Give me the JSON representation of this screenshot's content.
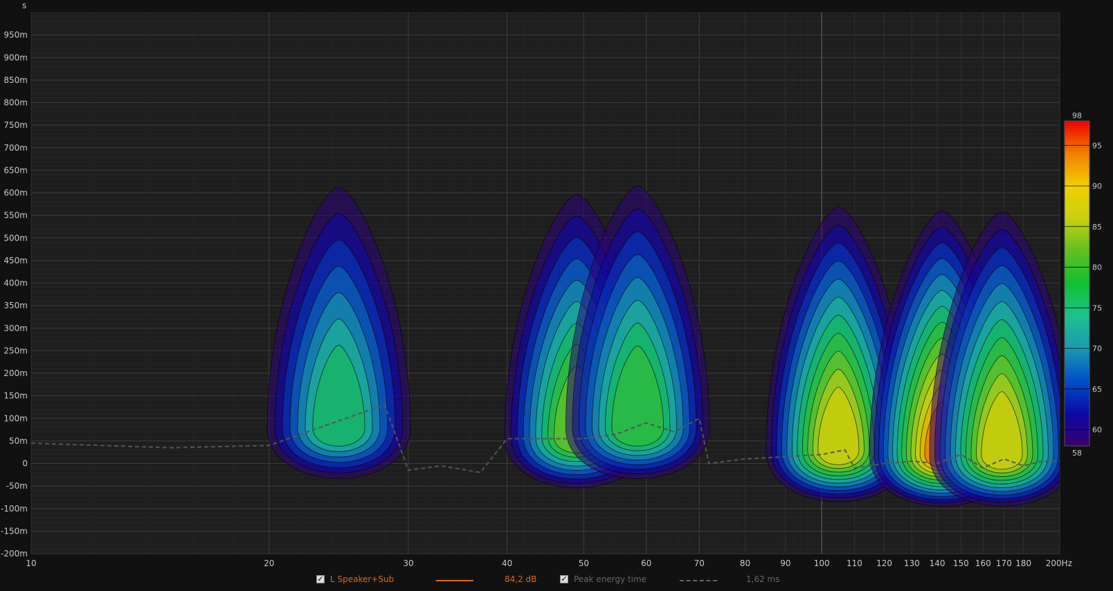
{
  "chart_data": {
    "type": "heatmap",
    "title": "",
    "x_scale": "log",
    "xlim": [
      10,
      200
    ],
    "x_unit": "Hz",
    "x_ticks": [
      10,
      20,
      30,
      40,
      50,
      60,
      70,
      80,
      90,
      100,
      110,
      120,
      130,
      140,
      150,
      160,
      170,
      180,
      200
    ],
    "x_tick_labels": [
      "10",
      "20",
      "30",
      "40",
      "50",
      "60",
      "70",
      "80",
      "90",
      "100",
      "110",
      "120",
      "130",
      "140",
      "150",
      "160",
      "170",
      "180",
      "200Hz"
    ],
    "y_unit": "s",
    "ylim": [
      -0.2,
      1.0
    ],
    "y_ticks": [
      0.95,
      0.9,
      0.85,
      0.8,
      0.75,
      0.7,
      0.65,
      0.6,
      0.55,
      0.5,
      0.45,
      0.4,
      0.35,
      0.3,
      0.25,
      0.2,
      0.15,
      0.1,
      0.05,
      0,
      -0.05,
      -0.1,
      -0.15,
      -0.2
    ],
    "y_tick_labels": [
      "950m",
      "900m",
      "850m",
      "800m",
      "750m",
      "700m",
      "650m",
      "600m",
      "550m",
      "500m",
      "450m",
      "400m",
      "350m",
      "300m",
      "250m",
      "200m",
      "150m",
      "100m",
      "50m",
      "0",
      "-50m",
      "-100m",
      "-150m",
      "-200m"
    ],
    "grid": true,
    "colorbar": {
      "min": 58,
      "max": 98,
      "ticks": [
        95,
        90,
        85,
        80,
        75,
        70,
        65,
        60
      ],
      "tick_labels": [
        "95",
        "90",
        "85",
        "80",
        "75",
        "70",
        "65",
        "60"
      ],
      "min_label": "58",
      "max_label": "98",
      "stops": [
        "#3a006a",
        "#0a0aa8",
        "#0050c8",
        "#1a9ab0",
        "#20c090",
        "#10c030",
        "#60c020",
        "#c8d010",
        "#f0d000",
        "#f08000",
        "#f00000"
      ]
    },
    "peaks": [
      {
        "freq": 24.5,
        "time": 0.08,
        "level": 78
      },
      {
        "freq": 49,
        "time": 0.06,
        "level": 84
      },
      {
        "freq": 58.5,
        "time": 0.08,
        "level": 82
      },
      {
        "freq": 105,
        "time": 0.03,
        "level": 90
      },
      {
        "freq": 142,
        "time": 0.02,
        "level": 95
      },
      {
        "freq": 169,
        "time": 0.02,
        "level": 90
      }
    ],
    "contour_step_db": 3,
    "peak_energy_time": {
      "freq": [
        10,
        15,
        20,
        25,
        28,
        30,
        33,
        37,
        40,
        45,
        50,
        55,
        60,
        65,
        70,
        72,
        80,
        90,
        100,
        107,
        110,
        120,
        130,
        140,
        150,
        160,
        170,
        180,
        190,
        200
      ],
      "time": [
        0.045,
        0.035,
        0.04,
        0.1,
        0.13,
        -0.015,
        -0.005,
        -0.02,
        0.055,
        0.055,
        0.055,
        0.065,
        0.09,
        0.07,
        0.1,
        0.0,
        0.01,
        0.015,
        0.02,
        0.03,
        -0.01,
        0.0,
        0.005,
        0.0,
        0.02,
        -0.01,
        0.01,
        -0.005,
        0.005,
        0.005
      ]
    },
    "series": [
      {
        "name": "L Speaker+Sub",
        "value_text": "84,2 dB",
        "color": "#d86a1a",
        "checked": true
      },
      {
        "name": "Peak energy time",
        "value_text": "1,62 ms",
        "color": "#666666",
        "checked": true
      }
    ],
    "y_axis_label": "s"
  }
}
